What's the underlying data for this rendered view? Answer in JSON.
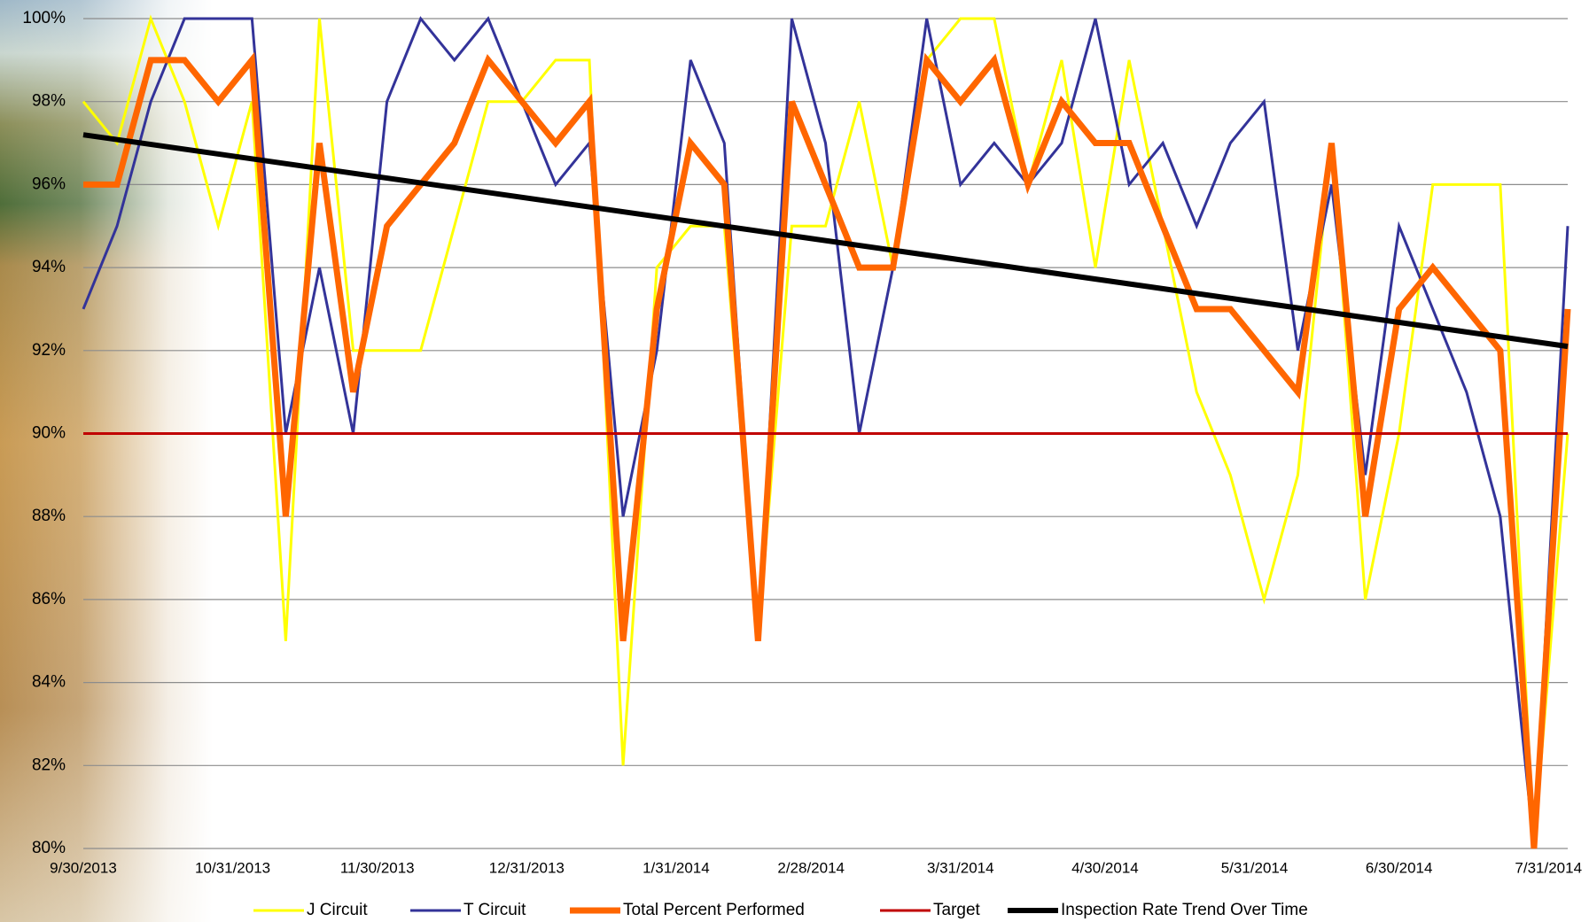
{
  "chart_data": {
    "type": "line",
    "x": [
      0,
      7,
      14,
      21,
      28,
      35,
      42,
      49,
      56,
      63,
      70,
      77,
      84,
      91,
      98,
      105,
      112,
      119,
      126,
      133,
      140,
      147,
      154,
      161,
      168,
      175,
      182,
      189,
      196,
      203,
      210,
      217,
      224,
      231,
      238,
      245,
      252,
      259,
      266,
      273,
      280,
      287,
      294,
      301,
      308
    ],
    "xlim": [
      0,
      308
    ],
    "xticks": [
      {
        "value": 0,
        "label": "9/30/2013"
      },
      {
        "value": 31,
        "label": "10/31/2013"
      },
      {
        "value": 61,
        "label": "11/30/2013"
      },
      {
        "value": 92,
        "label": "12/31/2013"
      },
      {
        "value": 123,
        "label": "1/31/2014"
      },
      {
        "value": 151,
        "label": "2/28/2014"
      },
      {
        "value": 182,
        "label": "3/31/2014"
      },
      {
        "value": 212,
        "label": "4/30/2014"
      },
      {
        "value": 243,
        "label": "5/31/2014"
      },
      {
        "value": 273,
        "label": "6/30/2014"
      },
      {
        "value": 304,
        "label": "7/31/2014"
      }
    ],
    "ylim": [
      80,
      100
    ],
    "yticks": [
      {
        "value": 80,
        "label": "80%"
      },
      {
        "value": 82,
        "label": "82%"
      },
      {
        "value": 84,
        "label": "84%"
      },
      {
        "value": 86,
        "label": "86%"
      },
      {
        "value": 88,
        "label": "88%"
      },
      {
        "value": 90,
        "label": "90%"
      },
      {
        "value": 92,
        "label": "92%"
      },
      {
        "value": 94,
        "label": "94%"
      },
      {
        "value": 96,
        "label": "96%"
      },
      {
        "value": 98,
        "label": "98%"
      },
      {
        "value": 100,
        "label": "100%"
      }
    ],
    "grid": true,
    "legend": "bottom",
    "series": [
      {
        "name": "J Circuit",
        "color": "#ffff00",
        "width": 3,
        "values": [
          98,
          97,
          100,
          98,
          95,
          98,
          85,
          100,
          92,
          92,
          92,
          95,
          98,
          98,
          99,
          99,
          82,
          94,
          95,
          95,
          85,
          95,
          95,
          98,
          94,
          99,
          100,
          100,
          96,
          99,
          94,
          99,
          95,
          91,
          89,
          86,
          89,
          97,
          86,
          90,
          96,
          96,
          96,
          80,
          90
        ]
      },
      {
        "name": "T Circuit",
        "color": "#333399",
        "width": 3,
        "values": [
          93,
          95,
          98,
          100,
          100,
          100,
          90,
          94,
          90,
          98,
          100,
          99,
          100,
          98,
          96,
          97,
          88,
          92,
          99,
          97,
          85,
          100,
          97,
          90,
          94,
          100,
          96,
          97,
          96,
          97,
          100,
          96,
          97,
          95,
          97,
          98,
          92,
          96,
          89,
          95,
          93,
          91,
          88,
          80,
          95
        ]
      },
      {
        "name": "Total Percent Performed",
        "color": "#ff6600",
        "width": 7,
        "values": [
          96,
          96,
          99,
          99,
          98,
          99,
          88,
          97,
          91,
          95,
          96,
          97,
          99,
          98,
          97,
          98,
          85,
          93,
          97,
          96,
          85,
          98,
          96,
          94,
          94,
          99,
          98,
          99,
          96,
          98,
          97,
          97,
          95,
          93,
          93,
          92,
          91,
          97,
          88,
          93,
          94,
          93,
          92,
          80,
          93
        ]
      },
      {
        "name": "Target",
        "color": "#c00000",
        "width": 3,
        "x": [
          0,
          308
        ],
        "values": [
          90,
          90
        ]
      },
      {
        "name": "Inspection Rate Trend Over Time",
        "color": "#000000",
        "width": 6,
        "x": [
          0,
          308
        ],
        "values": [
          97.2,
          92.1
        ]
      }
    ]
  }
}
